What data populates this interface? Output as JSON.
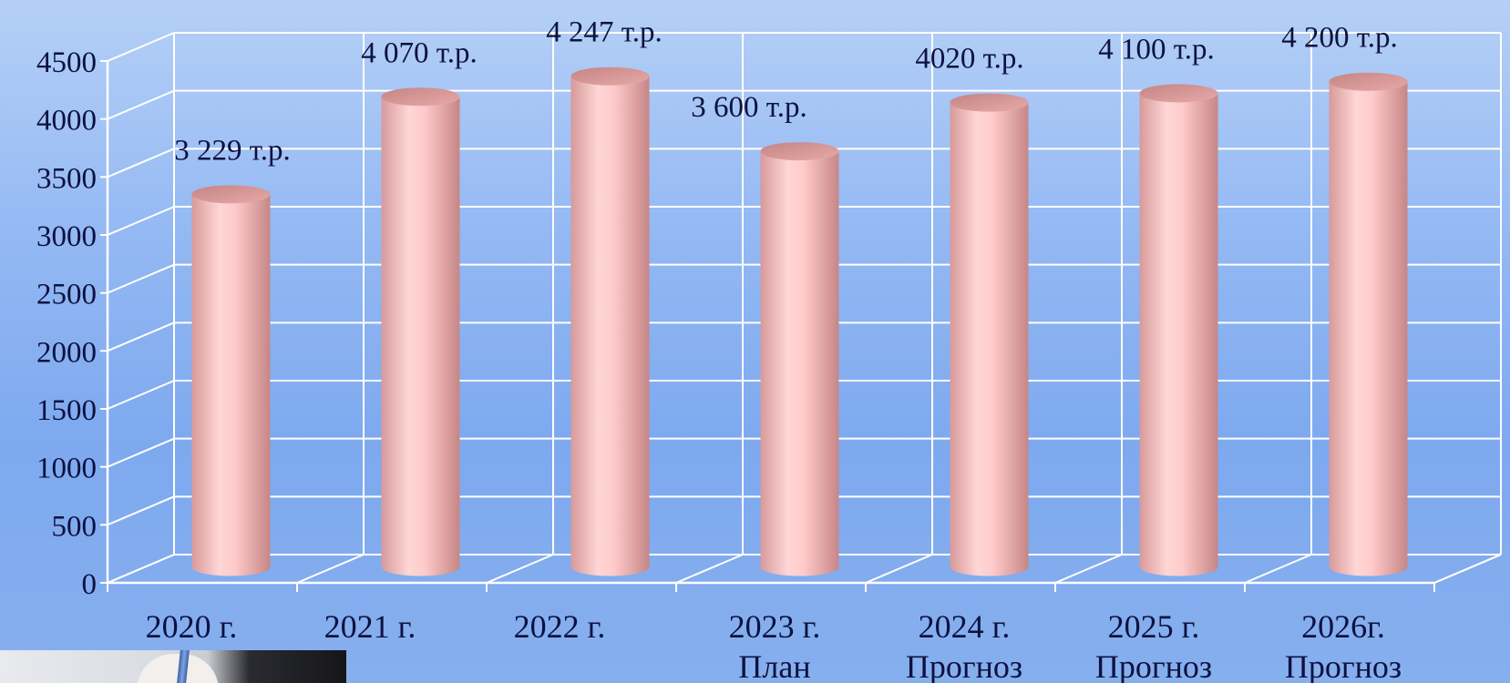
{
  "chart_data": {
    "type": "bar",
    "style": "3d-cylinder",
    "categories": [
      [
        "2020 г."
      ],
      [
        "2021 г."
      ],
      [
        "2022 г."
      ],
      [
        "2023 г.",
        "План"
      ],
      [
        "2024 г.",
        "Прогноз"
      ],
      [
        "2025 г.",
        "Прогноз"
      ],
      [
        "2026г.",
        "Прогноз"
      ]
    ],
    "values": [
      3229,
      4070,
      4247,
      3600,
      4020,
      4100,
      4200
    ],
    "data_labels": [
      "3 229 т.р.",
      "4 070 т.р.",
      "4 247 т.р.",
      "3 600 т.р.",
      "4020 т.р.",
      "4 100 т.р.",
      "4 200 т.р."
    ],
    "ylim": [
      0,
      4500
    ],
    "yticks": [
      0,
      500,
      1000,
      1500,
      2000,
      2500,
      3000,
      3500,
      4000,
      4500
    ],
    "grid": true,
    "legend": "none",
    "colors": {
      "bar": "#f4b8b8",
      "bar_highlight": "#ffd4d4",
      "bar_shadow": "#c98a8a",
      "grid": "#ffffff",
      "text": "#0d1240"
    }
  },
  "decorations": {
    "corner_photo": "hand-with-pen-photo"
  }
}
